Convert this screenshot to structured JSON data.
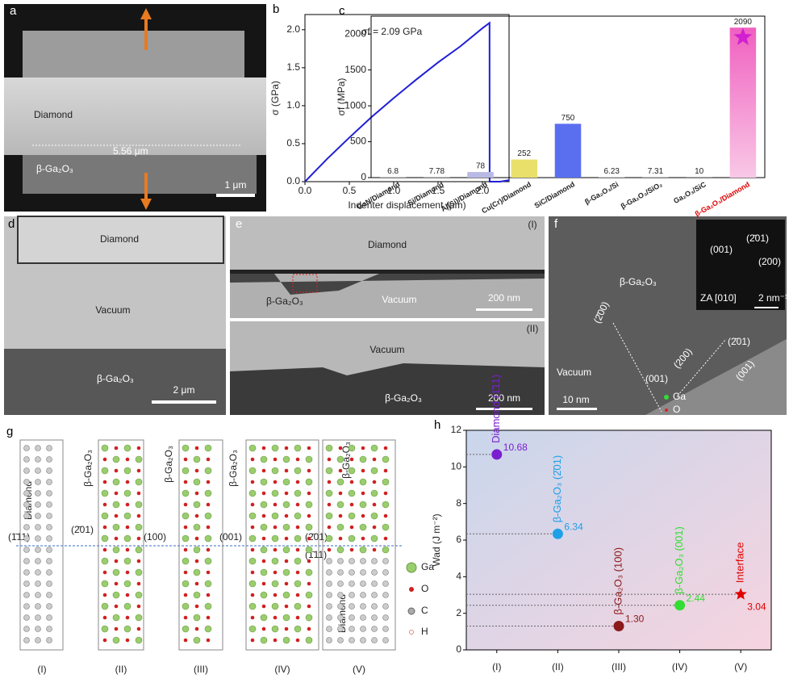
{
  "chart_data": [
    {
      "type": "line",
      "label": "b",
      "annotation": "σf = 2.09 GPa",
      "xlabel": "Indenter displacement (μm)",
      "ylabel": "σ (GPa)",
      "x": [
        0,
        0.1,
        0.25,
        0.5,
        0.75,
        1.0,
        1.25,
        1.5,
        1.75,
        2.0,
        2.08,
        2.081,
        2.2,
        2.3
      ],
      "values": [
        0,
        0.12,
        0.3,
        0.58,
        0.85,
        1.1,
        1.34,
        1.57,
        1.78,
        2.02,
        2.09,
        0,
        0,
        0.02
      ],
      "color": "#1f1fd6",
      "xlim": [
        0,
        2.3
      ],
      "ylim": [
        0,
        2.2
      ],
      "xticks": [
        {
          "value": 0,
          "label": "0.0"
        },
        0.5,
        {
          "value": 1,
          "label": "1.0"
        },
        1.5,
        {
          "value": 2,
          "label": "2.0"
        }
      ],
      "yticks": [
        {
          "value": 0,
          "label": "0.0"
        },
        0.5,
        {
          "value": 1,
          "label": "1.0"
        },
        1.5,
        {
          "value": 2,
          "label": "2.0"
        }
      ]
    },
    {
      "type": "bar",
      "label": "c",
      "ylabel": "σf (MPa)",
      "categories": [
        "GaN/Diamond",
        "Si/Diamond",
        "Al(Si)/Diamond",
        "Cu(Cr)/Diamond",
        "SiC/Diamond",
        "β-Ga₂O₃/Si",
        "β-Ga₂O₃/SiO₂",
        "Ga₂O₃/SiC",
        "β-Ga₂O₃/Diamond"
      ],
      "values": [
        6.8,
        7.78,
        78,
        252,
        750,
        6.23,
        7.31,
        10,
        2090
      ],
      "colors": [
        "#9a9a9a",
        "#9a9a9a",
        "#b9b9e6",
        "#e8e06a",
        "#5a6ff0",
        "#9a9a9a",
        "#9a9a9a",
        "#9a9a9a",
        "#f27cc8"
      ],
      "category_colors": [
        "#222",
        "#222",
        "#222",
        "#222",
        "#222",
        "#222",
        "#222",
        "#222",
        "#e00000"
      ],
      "ylim": [
        0,
        2250
      ],
      "yticks": [
        0,
        500,
        1000,
        1500,
        2000
      ]
    },
    {
      "type": "scatter",
      "label": "h",
      "ylabel": "Wad (J m⁻²)",
      "categories": [
        "(I)",
        "(II)",
        "(III)",
        "(IV)",
        "(V)"
      ],
      "values": [
        10.68,
        6.34,
        1.3,
        2.44,
        3.04
      ],
      "value_labels": [
        "10.68",
        "6.34",
        "1.30",
        "2.44",
        "3.04"
      ],
      "point_labels": [
        "Diamond (1̄11)",
        "β-Ga₂O₃ (2̄01)",
        "β-Ga₂O₃ (100)",
        "β-Ga₂O₃ (001)",
        "Interface"
      ],
      "colors": [
        "#7a1fd0",
        "#1ea0e8",
        "#8b1a1a",
        "#33dd33",
        "#e00000"
      ],
      "ylim": [
        0,
        12
      ],
      "yticks": [
        0,
        2,
        4,
        6,
        8,
        10,
        12
      ]
    }
  ],
  "panels": {
    "a": {
      "label": "a",
      "texts": [
        "Diamond",
        "5.56 μm",
        "β-Ga₂O₃",
        "1 μm"
      ]
    },
    "d": {
      "label": "d",
      "texts": [
        "Diamond",
        "Vacuum",
        "β-Ga₂O₃",
        "2 μm"
      ]
    },
    "e": {
      "label": "e",
      "texts": [
        "Diamond",
        "(I)",
        "β-Ga₂O₃",
        "Vacuum",
        "200 nm",
        "(II)",
        "Vacuum",
        "β-Ga₂O₃",
        "200 nm"
      ]
    },
    "f": {
      "label": "f",
      "texts": [
        "β-Ga₂O₃",
        "(001)",
        "(2̄01)",
        "(200)",
        "ZA [010]",
        "2 nm⁻¹",
        "(2̄00)",
        "(2̄01)",
        "Vacuum",
        "(001)",
        "(200)",
        "(001)",
        "10 nm",
        "Ga",
        "O"
      ]
    },
    "g": {
      "label": "g",
      "texts": [
        "Diamond",
        "β-Ga₂O₃",
        "β-Ga₂O₃",
        "β-Ga₂O₃",
        "β-Ga₂O₃",
        "Diamond",
        "(1̄11)",
        "(2̄01)",
        "(100)",
        "(001)",
        "(2̄01)",
        "(1̄11)",
        "Ga",
        "O",
        "C",
        "H",
        "(I)",
        "(II)",
        "(III)",
        "(IV)",
        "(V)"
      ]
    }
  }
}
